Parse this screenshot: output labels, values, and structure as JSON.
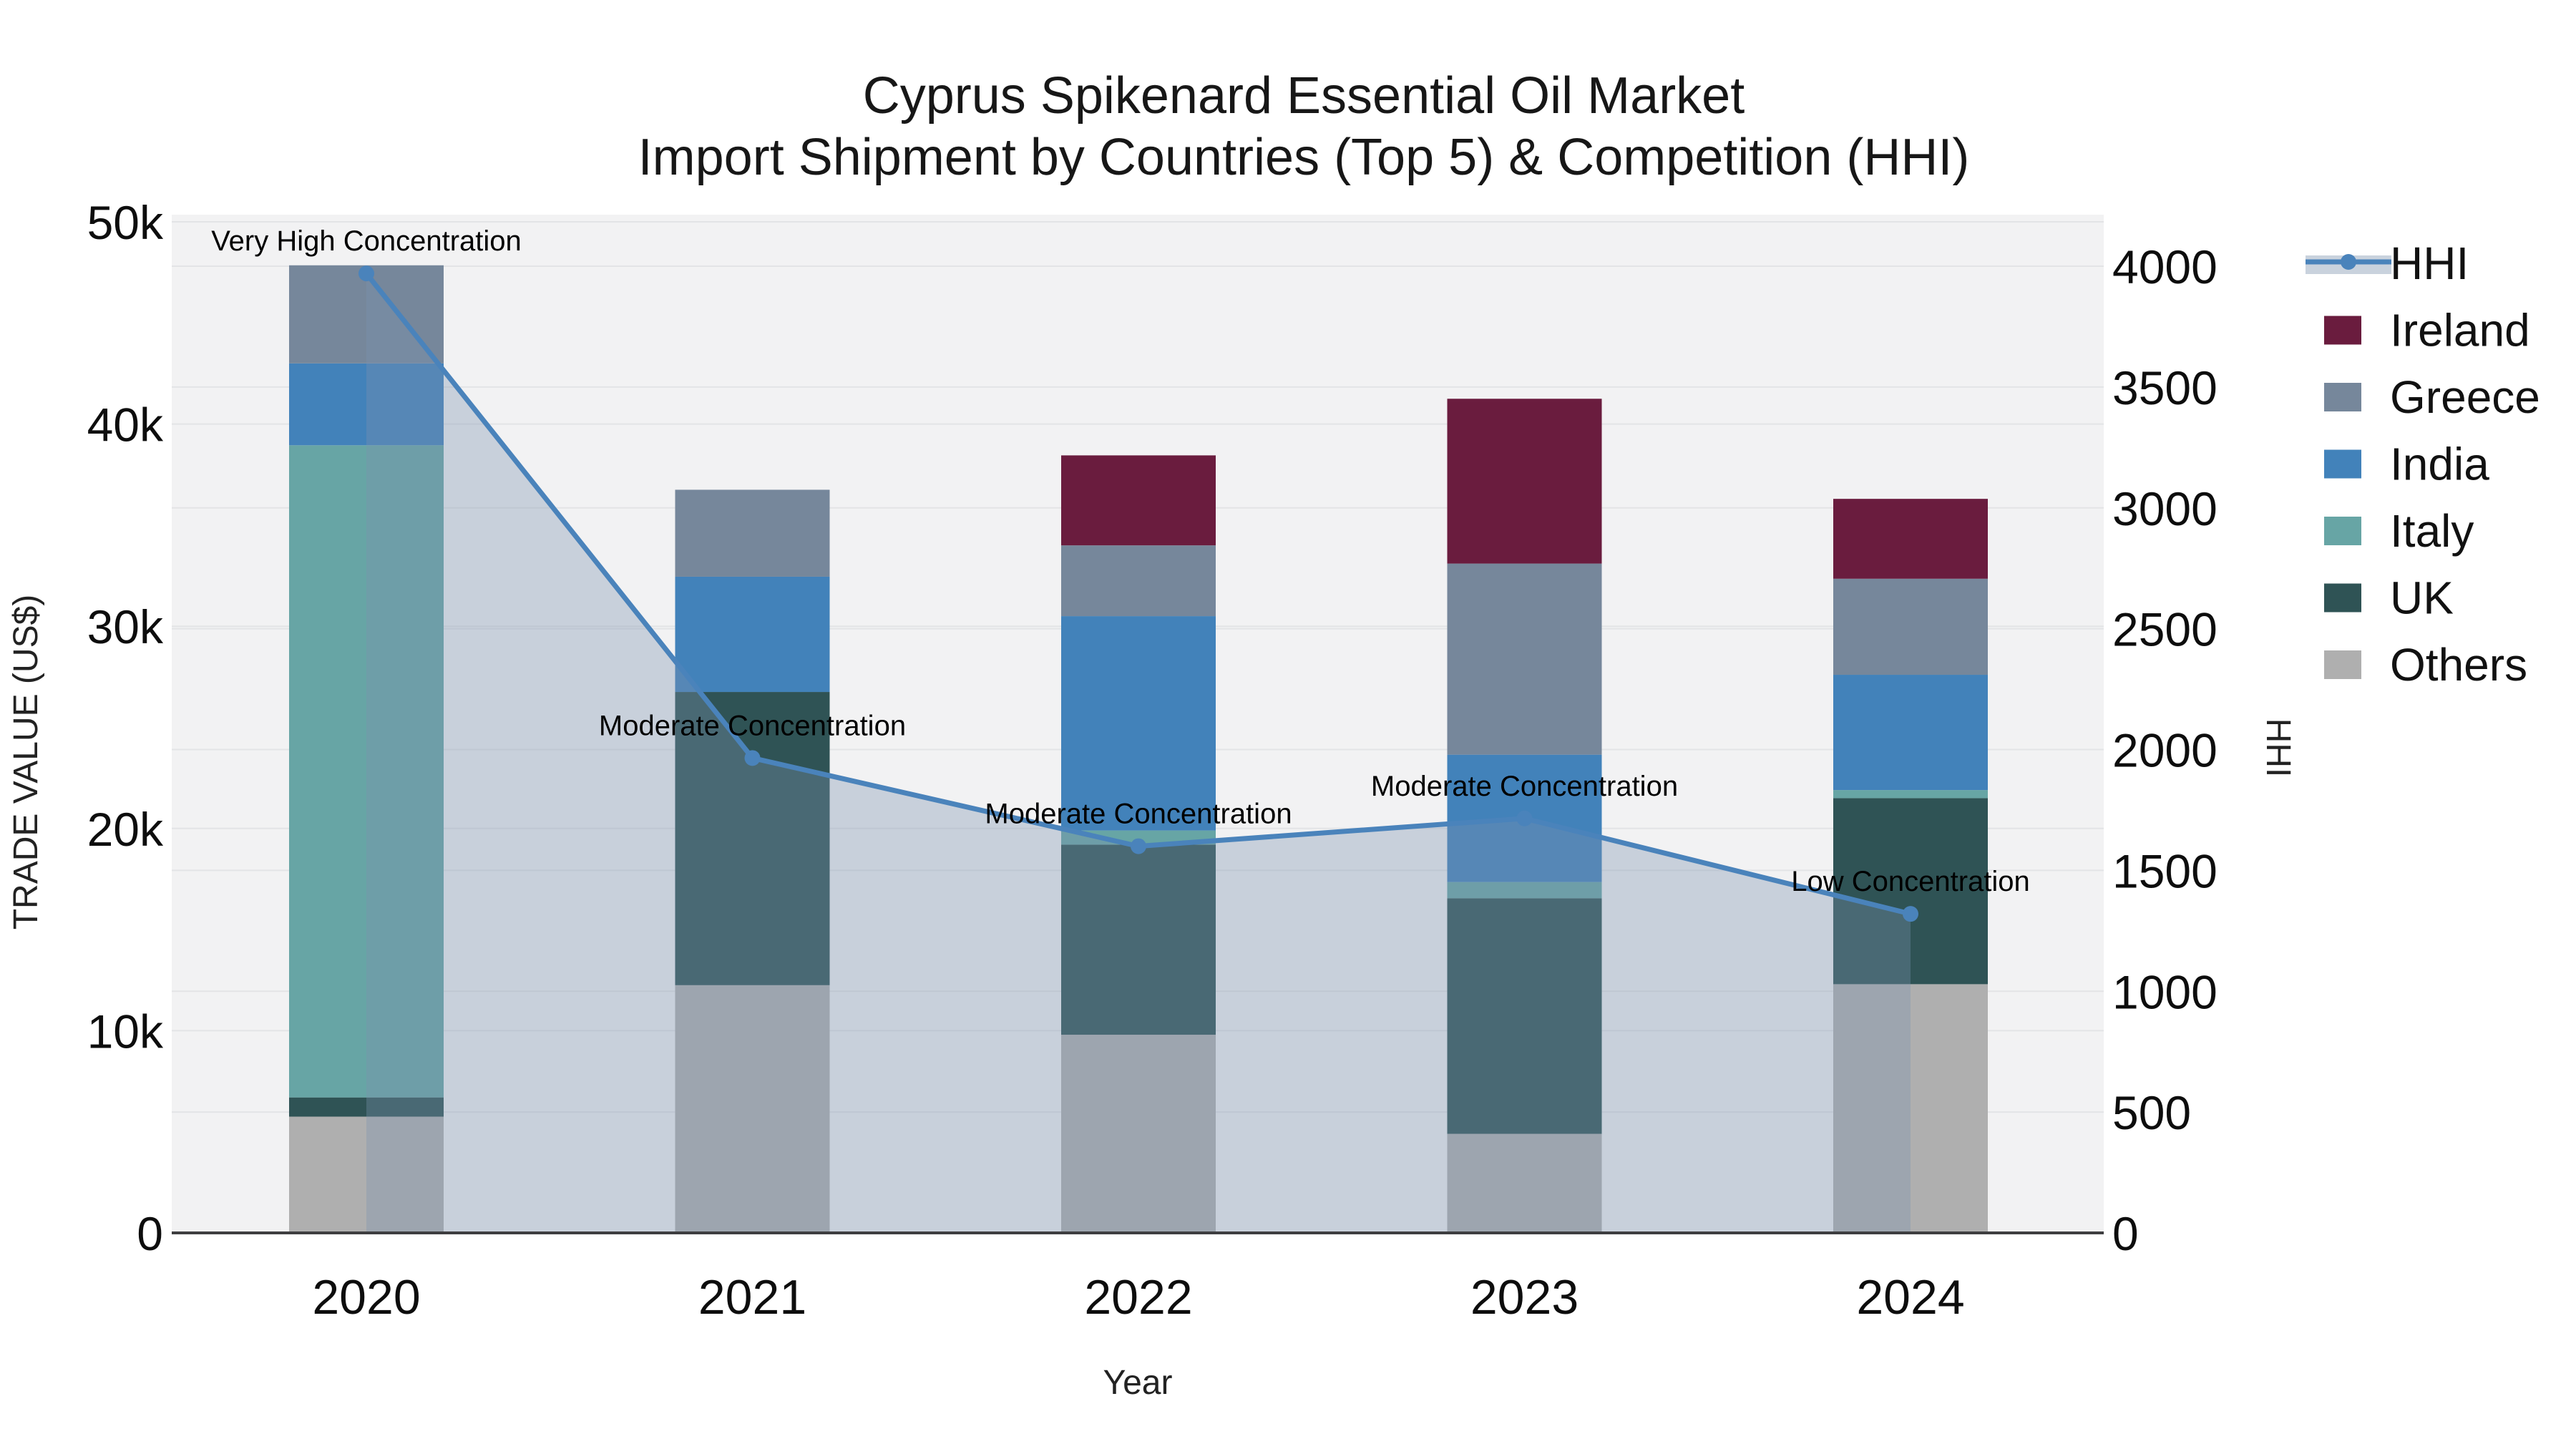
{
  "title": {
    "line1": "Cyprus Spikenard Essential Oil Market",
    "line2": "Import Shipment by Countries (Top 5) & Competition (HHI)"
  },
  "axes": {
    "left": {
      "title": "TRADE VALUE (US$)",
      "range": [
        0,
        50000
      ],
      "ticks": [
        {
          "label": "0",
          "value": 0
        },
        {
          "label": "10k",
          "value": 10000
        },
        {
          "label": "20k",
          "value": 20000
        },
        {
          "label": "30k",
          "value": 30000
        },
        {
          "label": "40k",
          "value": 40000
        },
        {
          "label": "50k",
          "value": 50000
        }
      ]
    },
    "right": {
      "title": "HHI",
      "range": [
        0,
        4000
      ],
      "ticks": [
        {
          "label": "0",
          "value": 0
        },
        {
          "label": "500",
          "value": 500
        },
        {
          "label": "1000",
          "value": 1000
        },
        {
          "label": "1500",
          "value": 1500
        },
        {
          "label": "2000",
          "value": 2000
        },
        {
          "label": "2500",
          "value": 2500
        },
        {
          "label": "3000",
          "value": 3000
        },
        {
          "label": "3500",
          "value": 3500
        },
        {
          "label": "4000",
          "value": 4000
        }
      ]
    },
    "x": {
      "title": "Year",
      "categories": [
        "2020",
        "2021",
        "2022",
        "2023",
        "2024"
      ]
    }
  },
  "legend": {
    "items": [
      {
        "label": "HHI",
        "type": "line",
        "color": "#4A83BB"
      },
      {
        "label": "Ireland",
        "type": "swatch",
        "color": "#6A1C3E"
      },
      {
        "label": "Greece",
        "type": "swatch",
        "color": "#76879B"
      },
      {
        "label": "India",
        "type": "swatch",
        "color": "#4282BA"
      },
      {
        "label": "Italy",
        "type": "swatch",
        "color": "#67A5A5"
      },
      {
        "label": "UK",
        "type": "swatch",
        "color": "#2F5355"
      },
      {
        "label": "Others",
        "type": "swatch",
        "color": "#AFAFAF"
      }
    ]
  },
  "colors": {
    "plot_bg": "#f2f2f3",
    "grid": "#e3e4e6",
    "axis_line": "#3e3e40",
    "hhi_line": "#4A83BB",
    "area_fill": "rgba(124,147,174,0.35)",
    "legend_band": "#c9d2dd"
  },
  "chart_data": {
    "type": "combo",
    "title": "Cyprus Spikenard Essential Oil Market — Import Shipment by Countries (Top 5) & Competition (HHI)",
    "categories": [
      "2020",
      "2021",
      "2022",
      "2023",
      "2024"
    ],
    "stack_order_bottom_to_top": [
      "Others",
      "UK",
      "Italy",
      "India",
      "Greece",
      "Ireland"
    ],
    "bar_series": [
      {
        "name": "Others",
        "color": "#AFAFAF",
        "values": [
          5750,
          12250,
          9800,
          4900,
          12300
        ]
      },
      {
        "name": "UK",
        "color": "#2F5355",
        "values": [
          950,
          14500,
          9400,
          11650,
          9200
        ]
      },
      {
        "name": "Italy",
        "color": "#67A5A5",
        "values": [
          32250,
          0,
          700,
          800,
          400
        ]
      },
      {
        "name": "India",
        "color": "#4282BA",
        "values": [
          4050,
          5700,
          10600,
          6300,
          5700
        ]
      },
      {
        "name": "Greece",
        "color": "#76879B",
        "values": [
          4850,
          4300,
          3500,
          9450,
          4750
        ]
      },
      {
        "name": "Ireland",
        "color": "#6A1C3E",
        "values": [
          0,
          0,
          4450,
          8150,
          3950
        ]
      }
    ],
    "line_series": {
      "name": "HHI",
      "axis": "right",
      "color": "#4A83BB",
      "values": [
        3970,
        1965,
        1600,
        1715,
        1320
      ]
    },
    "annotations": [
      {
        "category": "2020",
        "text": "Very High Concentration"
      },
      {
        "category": "2021",
        "text": "Moderate Concentration"
      },
      {
        "category": "2022",
        "text": "Moderate Concentration"
      },
      {
        "category": "2023",
        "text": "Moderate Concentration"
      },
      {
        "category": "2024",
        "text": "Low Concentration"
      }
    ],
    "xlabel": "Year",
    "ylabel": "TRADE VALUE (US$)",
    "y2label": "HHI",
    "ylim": [
      0,
      50000
    ],
    "y2lim": [
      0,
      4000
    ],
    "grid": true,
    "legend_position": "right"
  }
}
